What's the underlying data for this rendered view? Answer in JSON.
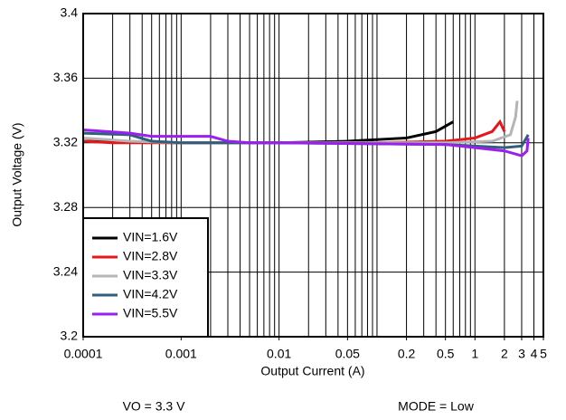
{
  "chart_data": {
    "type": "line",
    "x_scale": "log",
    "grid": true,
    "xlabel": "Output Current (A)",
    "ylabel": "Output Voltage (V)",
    "annotations": [
      "VO = 3.3 V",
      "MODE = Low"
    ],
    "legend": "lower left",
    "xlim": [
      0.0001,
      5
    ],
    "xticks": [
      0.0001,
      0.001,
      0.01,
      0.05,
      0.2,
      0.5,
      1,
      2,
      3,
      4,
      5
    ],
    "ylim": [
      3.2,
      3.4
    ],
    "yticks": [
      3.2,
      3.24,
      3.28,
      3.32,
      3.36,
      3.4
    ],
    "series": [
      {
        "name": "VIN=1.6V",
        "color": "#000000",
        "x": [
          0.0001,
          0.001,
          0.01,
          0.05,
          0.2,
          0.4,
          0.6
        ],
        "values": [
          3.321,
          3.32,
          3.32,
          3.321,
          3.323,
          3.327,
          3.333
        ]
      },
      {
        "name": "VIN=2.8V",
        "color": "#e8151a",
        "x": [
          0.0001,
          0.0002,
          0.001,
          0.01,
          0.1,
          0.5,
          1,
          1.5,
          1.8,
          2
        ],
        "values": [
          3.321,
          3.32,
          3.32,
          3.32,
          3.32,
          3.321,
          3.323,
          3.327,
          3.333,
          3.327
        ]
      },
      {
        "name": "VIN=3.3V",
        "color": "#b5b5b5",
        "x": [
          0.0001,
          0.0003,
          0.001,
          0.01,
          0.5,
          1.5,
          2.3,
          2.6,
          2.7
        ],
        "values": [
          3.323,
          3.321,
          3.32,
          3.32,
          3.32,
          3.321,
          3.325,
          3.336,
          3.346
        ]
      },
      {
        "name": "VIN=4.2V",
        "color": "#2f5f7a",
        "x": [
          0.0001,
          0.0003,
          0.0005,
          0.001,
          0.01,
          0.5,
          1,
          2,
          3,
          3.5
        ],
        "values": [
          3.326,
          3.325,
          3.321,
          3.32,
          3.32,
          3.319,
          3.318,
          3.317,
          3.318,
          3.325
        ]
      },
      {
        "name": "VIN=5.5V",
        "color": "#9a1ff0",
        "x": [
          0.0001,
          0.0003,
          0.0005,
          0.001,
          0.002,
          0.003,
          0.005,
          0.01,
          0.5,
          1,
          2,
          3,
          3.4,
          3.5
        ],
        "values": [
          3.328,
          3.326,
          3.324,
          3.324,
          3.324,
          3.321,
          3.32,
          3.32,
          3.319,
          3.317,
          3.315,
          3.312,
          3.315,
          3.323
        ]
      }
    ]
  }
}
